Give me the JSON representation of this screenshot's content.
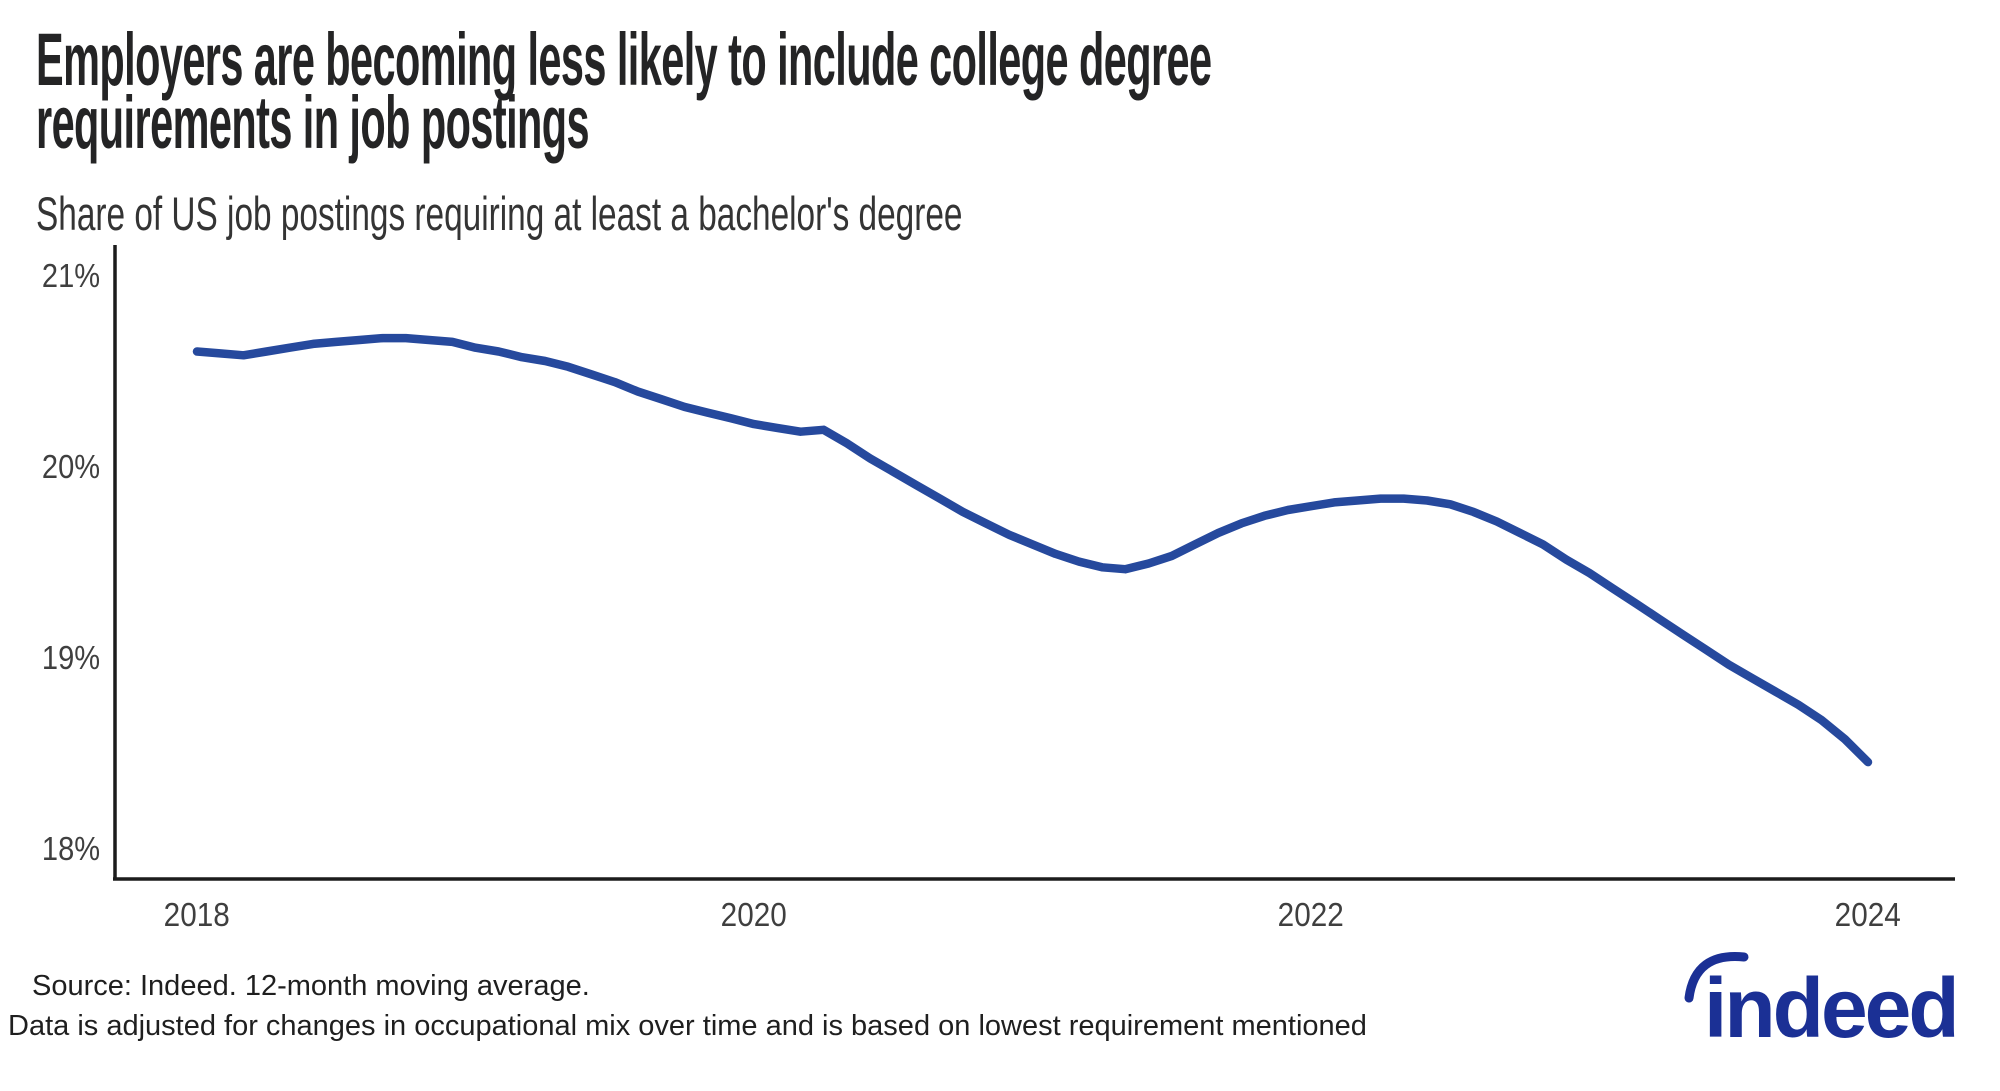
{
  "header": {
    "title_line1": "Employers are becoming less likely to include college degree",
    "title_line2": "requirements in job postings",
    "subtitle": "Share of US job postings requiring at least a bachelor's degree"
  },
  "footer": {
    "source_line1": "Source: Indeed. 12-month moving average.",
    "source_line2": "Data is adjusted for changes in occupational mix over time and is based on lowest requirement mentioned",
    "logo_text": "indeed"
  },
  "colors": {
    "line": "#26499d",
    "axis": "#1c1c1c",
    "logo": "#1b3095",
    "title_text": "#242425",
    "tick_text": "#3f3f3f"
  },
  "chart_data": {
    "type": "line",
    "title": "Employers are becoming less likely to include college degree requirements in job postings",
    "subtitle": "Share of US job postings requiring at least a bachelor's degree",
    "xlabel": "",
    "ylabel": "Share of US job postings requiring at least a bachelor's degree (%)",
    "x_unit": "year (decimal, monthly points, 12-month moving average)",
    "xlim": [
      2017.71,
      2024.31
    ],
    "ylim": [
      17.85,
      21.17
    ],
    "grid": false,
    "legend": "none",
    "series_name": "Share requiring at least a bachelor's degree",
    "x": [
      2018.0,
      2018.083,
      2018.167,
      2018.25,
      2018.333,
      2018.417,
      2018.5,
      2018.583,
      2018.667,
      2018.75,
      2018.833,
      2018.917,
      2019.0,
      2019.083,
      2019.167,
      2019.25,
      2019.333,
      2019.417,
      2019.5,
      2019.583,
      2019.667,
      2019.75,
      2019.833,
      2019.917,
      2020.0,
      2020.083,
      2020.167,
      2020.25,
      2020.333,
      2020.417,
      2020.5,
      2020.583,
      2020.667,
      2020.75,
      2020.833,
      2020.917,
      2021.0,
      2021.083,
      2021.167,
      2021.25,
      2021.333,
      2021.417,
      2021.5,
      2021.583,
      2021.667,
      2021.75,
      2021.833,
      2021.917,
      2022.0,
      2022.083,
      2022.167,
      2022.25,
      2022.333,
      2022.417,
      2022.5,
      2022.583,
      2022.667,
      2022.75,
      2022.833,
      2022.917,
      2023.0,
      2023.083,
      2023.167,
      2023.25,
      2023.333,
      2023.417,
      2023.5,
      2023.583,
      2023.667,
      2023.75,
      2023.833,
      2023.917,
      2024.0
    ],
    "values": [
      20.61,
      20.6,
      20.59,
      20.61,
      20.63,
      20.65,
      20.66,
      20.67,
      20.68,
      20.68,
      20.67,
      20.66,
      20.63,
      20.61,
      20.58,
      20.56,
      20.53,
      20.49,
      20.45,
      20.4,
      20.36,
      20.32,
      20.29,
      20.26,
      20.23,
      20.21,
      20.19,
      20.2,
      20.13,
      20.05,
      19.98,
      19.91,
      19.84,
      19.77,
      19.71,
      19.65,
      19.6,
      19.55,
      19.51,
      19.48,
      19.47,
      19.5,
      19.54,
      19.6,
      19.66,
      19.71,
      19.75,
      19.78,
      19.8,
      19.82,
      19.83,
      19.84,
      19.84,
      19.83,
      19.81,
      19.77,
      19.72,
      19.66,
      19.6,
      19.52,
      19.45,
      19.37,
      19.29,
      19.21,
      19.13,
      19.05,
      18.97,
      18.9,
      18.83,
      18.76,
      18.68,
      18.58,
      18.46
    ],
    "xticks": [
      {
        "label": "2018",
        "value": 2018
      },
      {
        "label": "2020",
        "value": 2020
      },
      {
        "label": "2022",
        "value": 2022
      },
      {
        "label": "2024",
        "value": 2024
      }
    ],
    "yticks": [
      {
        "label": "21%",
        "value": 21
      },
      {
        "label": "20%",
        "value": 20
      },
      {
        "label": "19%",
        "value": 19
      },
      {
        "label": "18%",
        "value": 18
      }
    ]
  }
}
